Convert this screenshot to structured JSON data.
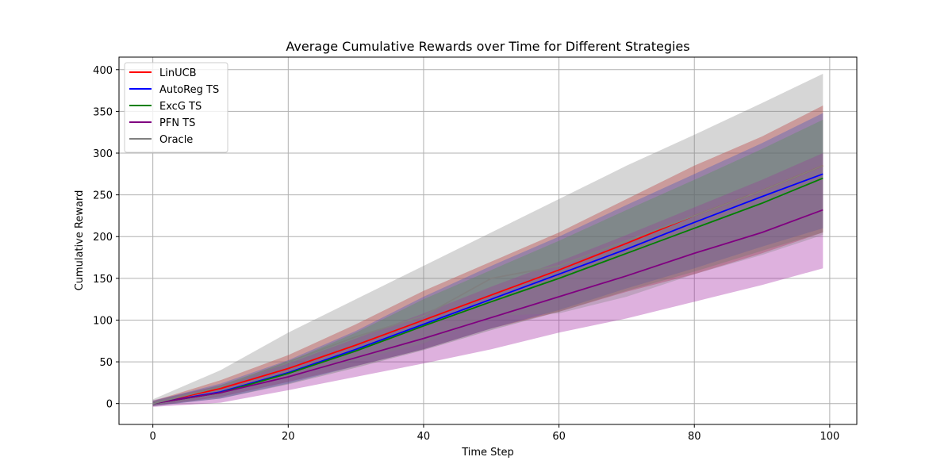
{
  "chart_data": {
    "type": "line",
    "title": "Average Cumulative Rewards over Time for Different Strategies",
    "xlabel": "Time Step",
    "ylabel": "Cumulative Reward",
    "xlim": [
      -5,
      104
    ],
    "ylim": [
      -25,
      415
    ],
    "xticks": [
      0,
      20,
      40,
      60,
      80,
      100
    ],
    "yticks": [
      0,
      50,
      100,
      150,
      200,
      250,
      300,
      350,
      400
    ],
    "grid": true,
    "legend_position": "top-left",
    "series": [
      {
        "name": "LinUCB",
        "color": "#ff0000",
        "band_color": "#d62728",
        "band_opacity": 0.4,
        "x": [
          0,
          10,
          20,
          30,
          40,
          50,
          60,
          70,
          80,
          90,
          99
        ],
        "mean": [
          0,
          18,
          42,
          70,
          100,
          130,
          160,
          192,
          225,
          255,
          285
        ],
        "lower": [
          -3,
          8,
          26,
          45,
          65,
          90,
          110,
          134,
          155,
          180,
          205
        ],
        "upper": [
          3,
          28,
          58,
          95,
          135,
          170,
          205,
          245,
          285,
          320,
          357
        ]
      },
      {
        "name": "AutoReg TS",
        "color": "#0000ff",
        "band_color": "#1f3fdd",
        "band_opacity": 0.35,
        "x": [
          0,
          10,
          20,
          30,
          40,
          50,
          60,
          70,
          80,
          90,
          99
        ],
        "mean": [
          0,
          14,
          37,
          65,
          95,
          125,
          155,
          185,
          217,
          248,
          275
        ],
        "lower": [
          -3,
          6,
          24,
          45,
          65,
          90,
          112,
          138,
          162,
          188,
          210
        ],
        "upper": [
          3,
          24,
          52,
          87,
          128,
          165,
          200,
          238,
          275,
          312,
          348
        ]
      },
      {
        "name": "ExcG TS",
        "color": "#008000",
        "band_color": "#2ca02c",
        "band_opacity": 0.3,
        "x": [
          0,
          10,
          20,
          30,
          40,
          50,
          60,
          70,
          80,
          90,
          99
        ],
        "mean": [
          0,
          13,
          36,
          63,
          93,
          122,
          150,
          180,
          210,
          240,
          270
        ],
        "lower": [
          -3,
          6,
          23,
          43,
          64,
          88,
          110,
          135,
          158,
          183,
          205
        ],
        "upper": [
          3,
          22,
          50,
          85,
          125,
          160,
          195,
          232,
          268,
          305,
          340
        ]
      },
      {
        "name": "PFN TS",
        "color": "#800080",
        "band_color": "#a020a0",
        "band_opacity": 0.35,
        "x": [
          0,
          10,
          20,
          30,
          40,
          50,
          60,
          70,
          80,
          90,
          99
        ],
        "mean": [
          0,
          13,
          32,
          55,
          78,
          103,
          128,
          153,
          180,
          205,
          232
        ],
        "lower": [
          -4,
          1,
          16,
          32,
          48,
          65,
          85,
          102,
          122,
          142,
          162
        ],
        "upper": [
          4,
          22,
          48,
          78,
          108,
          140,
          170,
          202,
          235,
          268,
          300
        ]
      },
      {
        "name": "Oracle",
        "color": "#808080",
        "band_color": "#808080",
        "band_opacity": 0.32,
        "x": [
          0,
          10,
          20,
          30,
          40,
          50,
          60,
          70,
          80,
          90,
          99
        ],
        "mean": [
          0,
          20,
          50,
          80,
          105,
          150,
          165,
          195,
          225,
          255,
          285
        ],
        "lower": [
          -2,
          10,
          33,
          52,
          72,
          105,
          108,
          128,
          155,
          178,
          202
        ],
        "upper": [
          5,
          40,
          85,
          125,
          165,
          205,
          245,
          285,
          322,
          360,
          395
        ]
      }
    ]
  }
}
